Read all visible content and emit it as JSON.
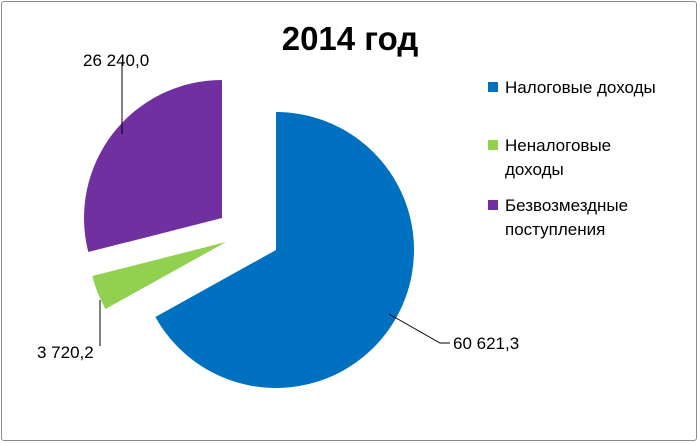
{
  "chart_data": {
    "type": "pie",
    "title": "2014 год",
    "categories": [
      "Налоговые доходы",
      "Неналоговые доходы",
      "Безвозмездные поступления"
    ],
    "values": [
      60621.3,
      3720.2,
      26240.0
    ],
    "data_labels": [
      "60 621,3",
      "3 720,2",
      "26 240,0"
    ],
    "colors": [
      "#0070c0",
      "#92d050",
      "#7030a0"
    ],
    "exploded": true,
    "legend_position": "right"
  }
}
